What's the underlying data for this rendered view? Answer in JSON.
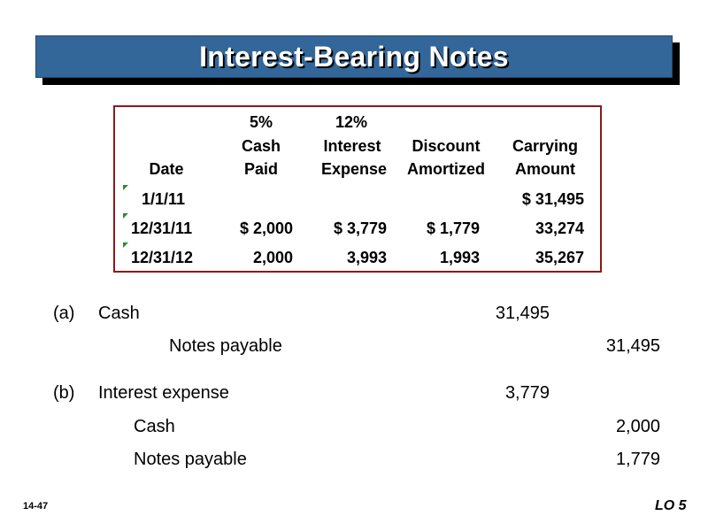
{
  "title": "Interest-Bearing Notes",
  "table": {
    "headers": {
      "date": [
        "Date"
      ],
      "cash_paid": [
        "5%",
        "Cash",
        "Paid"
      ],
      "interest_expense": [
        "12%",
        "Interest",
        "Expense"
      ],
      "discount_amortized": [
        "Discount",
        "Amortized"
      ],
      "carrying_amount": [
        "Carrying",
        "Amount"
      ]
    },
    "rows": [
      {
        "date": "1/1/11",
        "cash_paid": "",
        "interest_expense": "",
        "discount_amortized": "",
        "carrying_amount": "$   31,495"
      },
      {
        "date": "12/31/11",
        "cash_paid": "$   2,000",
        "interest_expense": "$   3,779",
        "discount_amortized": "$  1,779",
        "carrying_amount": "33,274"
      },
      {
        "date": "12/31/12",
        "cash_paid": "2,000",
        "interest_expense": "3,993",
        "discount_amortized": "1,993",
        "carrying_amount": "35,267"
      }
    ]
  },
  "journal": {
    "a": {
      "label": "(a)",
      "debit_account": "Cash",
      "debit_amount": "31,495",
      "credit_account": "Notes payable",
      "credit_amount": "31,495"
    },
    "b": {
      "label": "(b)",
      "debit_account": "Interest expense",
      "debit_amount": "3,779",
      "credit1_account": "Cash",
      "credit1_amount": "2,000",
      "credit2_account": "Notes payable",
      "credit2_amount": "1,779"
    }
  },
  "footer": {
    "slide_number": "14-47",
    "learning_objective": "LO 5"
  },
  "colors": {
    "title_bar": "#336699",
    "table_border": "#8b1a1a",
    "cell_flag": "#2e8b2e"
  }
}
